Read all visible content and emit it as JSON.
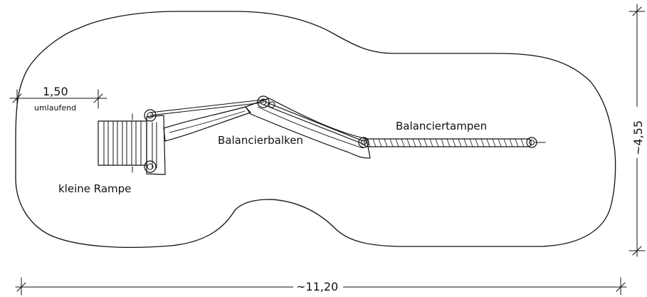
{
  "labels": {
    "ramp": "kleine Rampe",
    "beam": "Balancierbalken",
    "rope": "Balanciertampen"
  },
  "dimensions": {
    "margin_value": "1,50",
    "margin_note": "umlaufend",
    "width": "~11,20",
    "height": "~4,55"
  },
  "colors": {
    "ink": "#111111",
    "paper": "#ffffff"
  }
}
